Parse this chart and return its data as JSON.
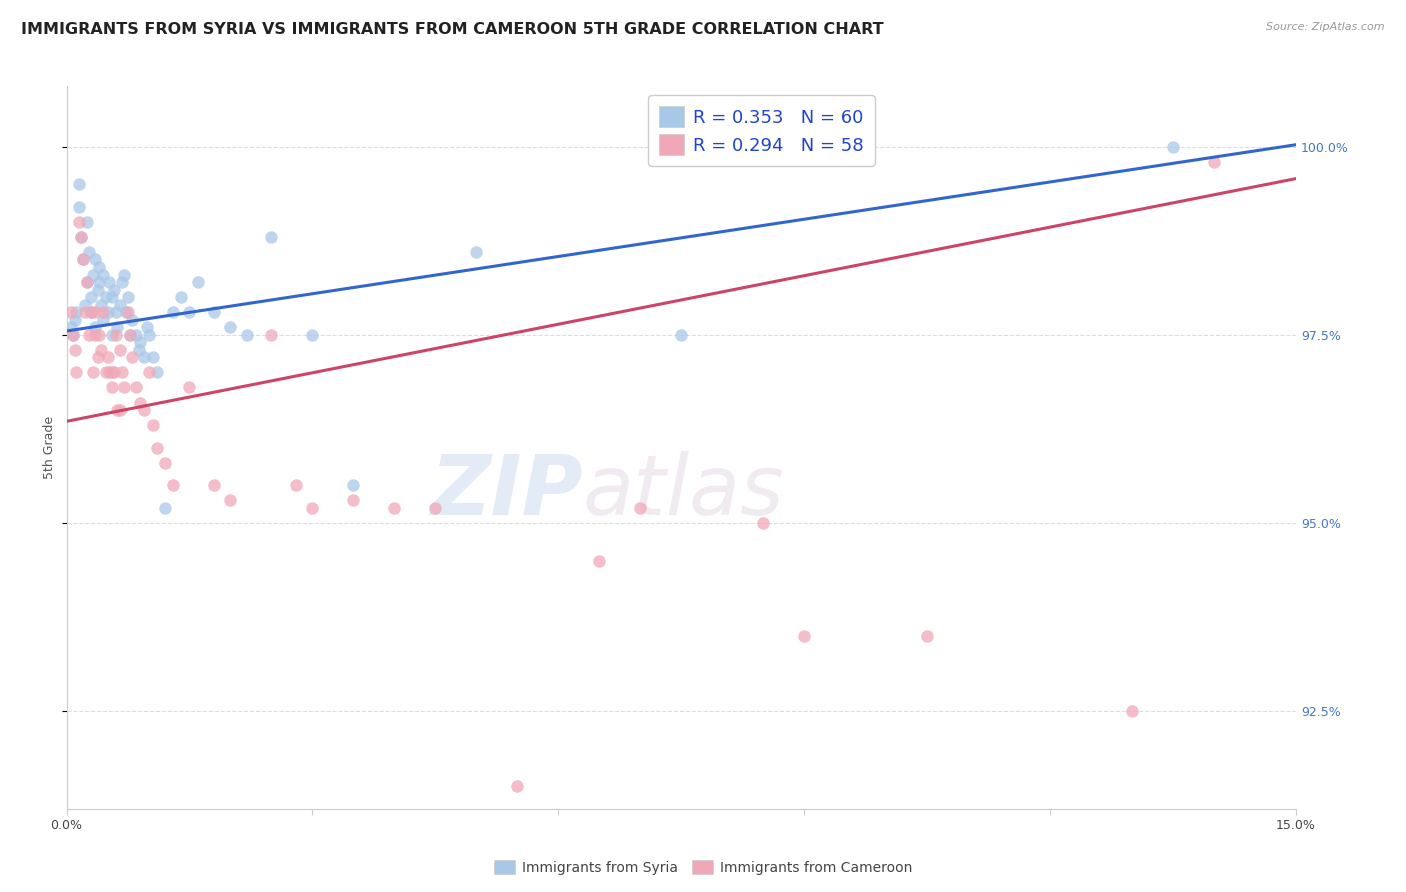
{
  "title": "IMMIGRANTS FROM SYRIA VS IMMIGRANTS FROM CAMEROON 5TH GRADE CORRELATION CHART",
  "source": "Source: ZipAtlas.com",
  "ylabel": "5th Grade",
  "ylabel_right_vals": [
    100.0,
    97.5,
    95.0,
    92.5
  ],
  "xlim": [
    0.0,
    15.0
  ],
  "ylim": [
    91.2,
    100.8
  ],
  "legend_blue_R": "R = 0.353",
  "legend_blue_N": "N = 60",
  "legend_pink_R": "R = 0.294",
  "legend_pink_N": "N = 58",
  "legend_label_blue": "Immigrants from Syria",
  "legend_label_pink": "Immigrants from Cameroon",
  "blue_color": "#a8c8e8",
  "blue_line_color": "#3366cc",
  "pink_color": "#f0a8b8",
  "pink_line_color": "#cc4466",
  "blue_scatter_x": [
    0.05,
    0.08,
    0.1,
    0.12,
    0.15,
    0.15,
    0.18,
    0.2,
    0.22,
    0.25,
    0.25,
    0.28,
    0.3,
    0.3,
    0.32,
    0.35,
    0.35,
    0.38,
    0.4,
    0.4,
    0.42,
    0.45,
    0.45,
    0.48,
    0.5,
    0.52,
    0.55,
    0.55,
    0.58,
    0.6,
    0.62,
    0.65,
    0.68,
    0.7,
    0.72,
    0.75,
    0.78,
    0.8,
    0.85,
    0.88,
    0.9,
    0.95,
    0.98,
    1.0,
    1.05,
    1.1,
    1.2,
    1.3,
    1.4,
    1.5,
    1.6,
    1.8,
    2.0,
    2.2,
    2.5,
    3.0,
    3.5,
    5.0,
    7.5,
    13.5
  ],
  "blue_scatter_y": [
    97.6,
    97.5,
    97.7,
    97.8,
    99.5,
    99.2,
    98.8,
    98.5,
    97.9,
    99.0,
    98.2,
    98.6,
    97.8,
    98.0,
    98.3,
    98.5,
    97.6,
    98.1,
    98.4,
    98.2,
    97.9,
    98.3,
    97.7,
    98.0,
    97.8,
    98.2,
    98.0,
    97.5,
    98.1,
    97.8,
    97.6,
    97.9,
    98.2,
    98.3,
    97.8,
    98.0,
    97.5,
    97.7,
    97.5,
    97.3,
    97.4,
    97.2,
    97.6,
    97.5,
    97.2,
    97.0,
    95.2,
    97.8,
    98.0,
    97.8,
    98.2,
    97.8,
    97.6,
    97.5,
    98.8,
    97.5,
    95.5,
    98.6,
    97.5,
    100.0
  ],
  "pink_scatter_x": [
    0.05,
    0.08,
    0.1,
    0.12,
    0.15,
    0.18,
    0.2,
    0.22,
    0.25,
    0.28,
    0.3,
    0.32,
    0.35,
    0.38,
    0.4,
    0.42,
    0.45,
    0.48,
    0.5,
    0.52,
    0.55,
    0.58,
    0.6,
    0.62,
    0.65,
    0.68,
    0.7,
    0.75,
    0.78,
    0.8,
    0.85,
    0.9,
    0.95,
    1.0,
    1.05,
    1.1,
    1.2,
    1.3,
    1.5,
    1.8,
    2.0,
    2.5,
    2.8,
    3.0,
    3.5,
    4.0,
    4.5,
    5.5,
    6.5,
    7.0,
    8.5,
    9.0,
    10.5,
    13.0,
    14.0,
    0.35,
    0.55,
    0.65
  ],
  "pink_scatter_y": [
    97.8,
    97.5,
    97.3,
    97.0,
    99.0,
    98.8,
    98.5,
    97.8,
    98.2,
    97.5,
    97.8,
    97.0,
    97.5,
    97.2,
    97.5,
    97.3,
    97.8,
    97.0,
    97.2,
    97.0,
    96.8,
    97.0,
    97.5,
    96.5,
    97.3,
    97.0,
    96.8,
    97.8,
    97.5,
    97.2,
    96.8,
    96.6,
    96.5,
    97.0,
    96.3,
    96.0,
    95.8,
    95.5,
    96.8,
    95.5,
    95.3,
    97.5,
    95.5,
    95.2,
    95.3,
    95.2,
    95.2,
    91.5,
    94.5,
    95.2,
    95.0,
    93.5,
    93.5,
    92.5,
    99.8,
    97.8,
    97.0,
    96.5
  ],
  "blue_line_y_intercept": 97.55,
  "blue_line_slope": 0.165,
  "pink_line_y_intercept": 96.35,
  "pink_line_slope": 0.215,
  "background_color": "#ffffff",
  "grid_color": "#dddddd",
  "watermark_zip": "ZIP",
  "watermark_atlas": "atlas",
  "title_fontsize": 11.5,
  "axis_fontsize": 9,
  "tick_fontsize": 9,
  "marker_size": 9,
  "legend_fontsize": 13
}
